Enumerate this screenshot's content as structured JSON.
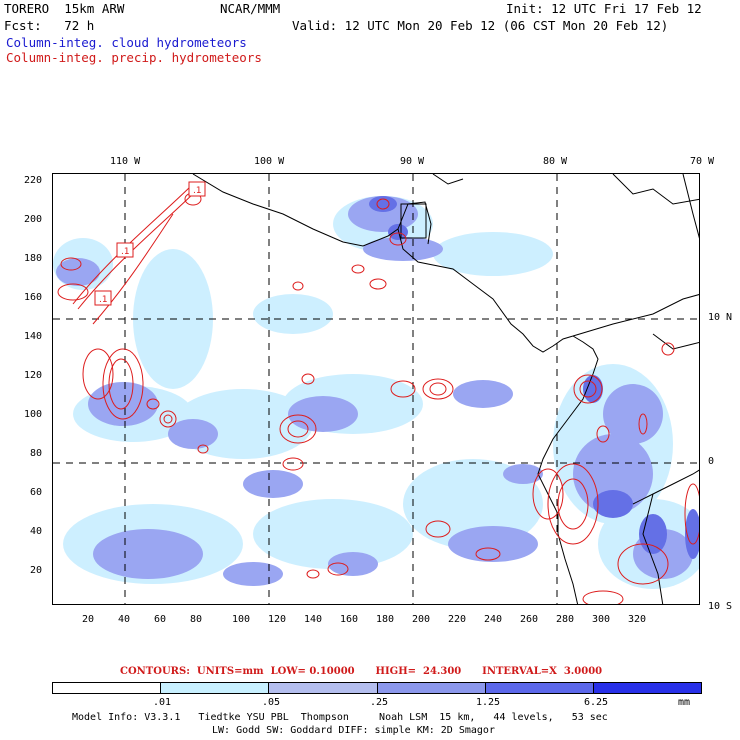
{
  "header": {
    "model": "TORERO  15km ARW",
    "org": "NCAR/MMM",
    "init": "Init: 12 UTC Fri 17 Feb 12",
    "fcst": "Fcst:   72 h",
    "valid": "Valid: 12 UTC Mon 20 Feb 12 (06 CST Mon 20 Feb 12)"
  },
  "legend": {
    "cloud": "Column-integ. cloud hydrometeors",
    "precip": "Column-integ. precip. hydrometeors"
  },
  "map": {
    "lon_labels": [
      "110 W",
      "100 W",
      "90 W",
      "80 W",
      "70 W"
    ],
    "lat_labels": [
      "10 N",
      "0",
      "10 S"
    ],
    "y_ticks": [
      "220",
      "200",
      "180",
      "160",
      "140",
      "120",
      "100",
      "80",
      "60",
      "40",
      "20"
    ],
    "x_ticks": [
      "20",
      "40",
      "60",
      "80",
      "100",
      "120",
      "140",
      "160",
      "180",
      "200",
      "220",
      "240",
      "260",
      "280",
      "300",
      "320"
    ],
    "contour_labels": [
      ".1",
      ".1",
      ".1"
    ],
    "colors": {
      "cloud_light": "#c8f0ff",
      "cloud_mid": "#9aa6f2",
      "cloud_dark": "#6470e6",
      "precip_contour": "#dd1c1c",
      "coastline": "#000000"
    }
  },
  "contour_info": "CONTOURS:  UNITS=mm  LOW= 0.10000      HIGH=  24.300      INTERVAL=X  3.0000",
  "colorbar": {
    "colors": [
      "#ffffff",
      "#c8f0ff",
      "#b4beee",
      "#8c98ec",
      "#5c68ea",
      "#2830e8"
    ],
    "labels": [
      ".01",
      ".05",
      ".25",
      "1.25",
      "6.25",
      "mm"
    ]
  },
  "footer": {
    "line1": "Model Info: V3.3.1   Tiedtke YSU PBL  Thompson     Noah LSM  15 km,   44 levels,   53 sec",
    "line2": "LW: Godd SW: Goddard DIFF: simple KM: 2D Smagor"
  }
}
